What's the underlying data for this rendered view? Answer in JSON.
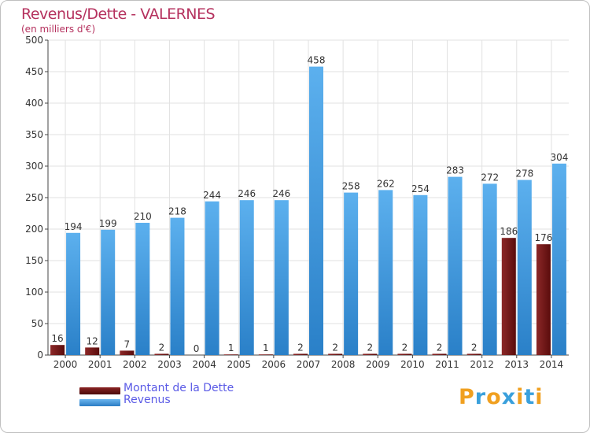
{
  "chart_data": {
    "type": "bar",
    "title": "Revenus/Dette - VALERNES",
    "subtitle": "(en milliers d'€)",
    "xlabel": "",
    "ylabel": "",
    "ylim": [
      0,
      500
    ],
    "yticks": [
      "0",
      "50",
      "100",
      "150",
      "200",
      "250",
      "300",
      "350",
      "400",
      "450",
      "500"
    ],
    "categories": [
      "2000",
      "2001",
      "2002",
      "2003",
      "2004",
      "2005",
      "2006",
      "2007",
      "2008",
      "2009",
      "2010",
      "2011",
      "2012",
      "2013",
      "2014"
    ],
    "series": [
      {
        "name": "Montant de la Dette",
        "color": "#7a1a1a",
        "values": [
          16,
          12,
          7,
          2,
          0,
          1,
          1,
          2,
          2,
          2,
          2,
          2,
          2,
          186,
          176
        ]
      },
      {
        "name": "Revenus",
        "color": "#4a9ee0",
        "values": [
          194,
          199,
          210,
          218,
          244,
          246,
          246,
          458,
          258,
          262,
          254,
          283,
          272,
          278,
          304
        ]
      }
    ],
    "grid": true,
    "legend_position": "bottom-left"
  },
  "logo": {
    "letters": [
      "P",
      "r",
      "o",
      "x",
      "i",
      "t",
      "i"
    ],
    "colors": [
      "#f0a020",
      "#3aa0dc",
      "#f0a020",
      "#3aa0dc",
      "#f0a020",
      "#3aa0dc",
      "#f0a020"
    ]
  }
}
